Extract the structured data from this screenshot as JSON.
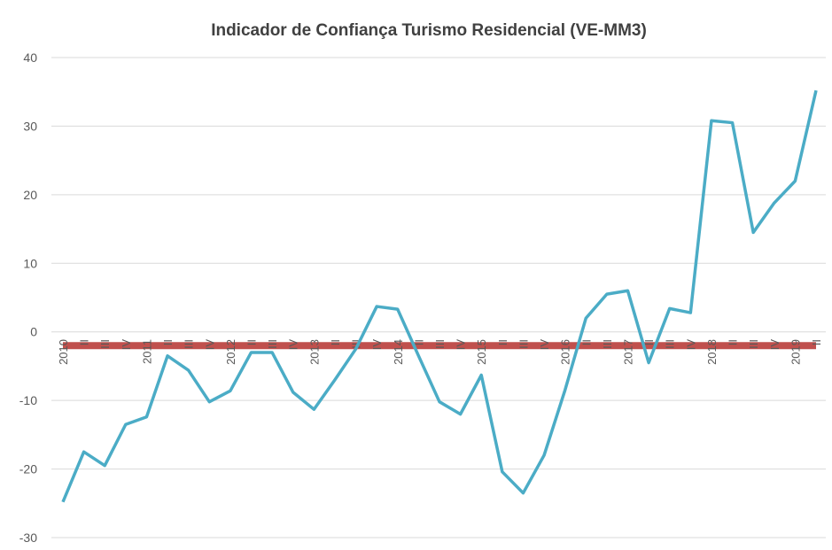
{
  "chart_data": {
    "type": "line",
    "title": "Indicador de Confiança Turismo Residencial (VE-MM3)",
    "categories": [
      "2010",
      "II",
      "III",
      "IV",
      "2011",
      "II",
      "III",
      "IV",
      "2012",
      "II",
      "III",
      "IV",
      "2013",
      "II",
      "III",
      "IV",
      "2014",
      "II",
      "III",
      "IV",
      "2015",
      "II",
      "III",
      "IV",
      "2016",
      "II",
      "III",
      "2017",
      "II",
      "III",
      "IV",
      "2018",
      "II",
      "III",
      "IV",
      "2019",
      "II"
    ],
    "series": [
      {
        "color": "#4bacc6",
        "values": [
          -24.8,
          -17.5,
          -19.5,
          -13.5,
          -12.4,
          -3.5,
          -5.6,
          -10.2,
          -8.6,
          -3.0,
          -3.0,
          -8.8,
          -11.3,
          -7.0,
          -2.5,
          3.7,
          3.3,
          -3.5,
          -10.2,
          -12.0,
          -6.3,
          -20.4,
          -23.5,
          -18.0,
          -8.5,
          2.0,
          5.5,
          6.0,
          -4.5,
          3.4,
          2.8,
          30.8,
          30.5,
          14.5,
          18.8,
          22.0,
          35.2
        ]
      },
      {
        "color": "#c0504d",
        "values": [
          -2,
          -2,
          -2,
          -2,
          -2,
          -2,
          -2,
          -2,
          -2,
          -2,
          -2,
          -2,
          -2,
          -2,
          -2,
          -2,
          -2,
          -2,
          -2,
          -2,
          -2,
          -2,
          -2,
          -2,
          -2,
          -2,
          -2,
          -2,
          -2,
          -2,
          -2,
          -2,
          -2,
          -2,
          -2,
          -2,
          -2
        ]
      }
    ],
    "ylim": [
      -30,
      40
    ],
    "yticks": [
      -30,
      -20,
      -10,
      0,
      10,
      20,
      30,
      40
    ],
    "grid": true
  }
}
